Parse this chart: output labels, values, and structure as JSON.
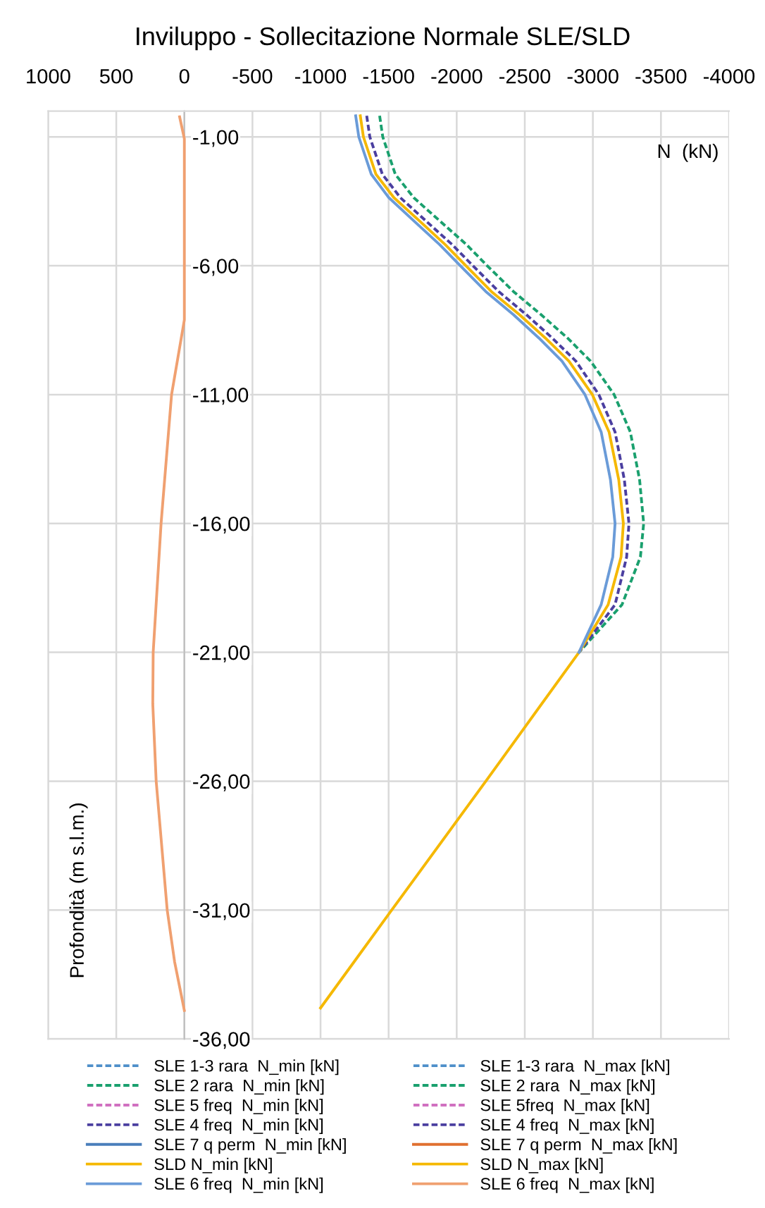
{
  "chart_data": {
    "type": "line",
    "title": "Inviluppo - Sollecitazione Normale SLE/SLD",
    "xlabel": "N  (kN)",
    "ylabel": "Profondità (m s.l.m.)",
    "xlim": [
      1000,
      -4000
    ],
    "xticks": [
      1000,
      500,
      0,
      -500,
      -1000,
      -1500,
      -2000,
      -2500,
      -3000,
      -3500,
      -4000
    ],
    "ylim": [
      -36,
      0
    ],
    "yticks": [
      {
        "value": -1,
        "label": "-1,00"
      },
      {
        "value": -6,
        "label": "-6,00"
      },
      {
        "value": -11,
        "label": "-11,00"
      },
      {
        "value": -16,
        "label": "-16,00"
      },
      {
        "value": -21,
        "label": "-21,00"
      },
      {
        "value": -26,
        "label": "-26,00"
      },
      {
        "value": -31,
        "label": "-31,00"
      },
      {
        "value": -36,
        "label": "-36,00"
      }
    ],
    "grid": true,
    "legend": "bottom",
    "marker": "none",
    "series": [
      {
        "name": "SLE 1-3 rara  N_min [kN]",
        "color": "#4e8fc9",
        "line_style": "dashed",
        "x": [
          null
        ],
        "values": [
          null
        ]
      },
      {
        "name": "SLE 1-3 rara  N_max [kN]",
        "color": "#4e8fc9",
        "line_style": "dashed",
        "x": [
          null
        ],
        "values": [
          null
        ]
      },
      {
        "name": "SLE 2 rara  N_min [kN]",
        "color": "#1aa06e",
        "line_style": "dashed",
        "x": [
          -1434,
          -1457,
          -1549,
          -1685,
          -1878,
          -2072,
          -2224,
          -2417,
          -2620,
          -2813,
          -2983,
          -3156,
          -3275,
          -3343,
          -3373,
          -3349,
          -3214,
          -2898
        ],
        "values": [
          -0.18,
          -1,
          -2.45,
          -3.36,
          -4.27,
          -5.18,
          -6,
          -7,
          -7.9,
          -8.8,
          -9.7,
          -11,
          -12.45,
          -14.3,
          -16,
          -17.3,
          -19.15,
          -21
        ]
      },
      {
        "name": "SLE 2 rara  N_max [kN]",
        "color": "#1aa06e",
        "line_style": "dashed",
        "x": [
          null
        ],
        "values": [
          null
        ]
      },
      {
        "name": "SLE 5 freq  N_min [kN]",
        "color": "#d070c0",
        "line_style": "dashed",
        "x": [
          null
        ],
        "values": [
          null
        ]
      },
      {
        "name": "SLE 5freq  N_max [kN]",
        "color": "#d070c0",
        "line_style": "dashed",
        "x": [
          null
        ],
        "values": [
          null
        ]
      },
      {
        "name": "SLE 4 freq  N_min [kN]",
        "color": "#4b3fa0",
        "line_style": "dashed",
        "x": [
          -1339,
          -1362,
          -1454,
          -1587,
          -1776,
          -1967,
          -2119,
          -2309,
          -2512,
          -2701,
          -2875,
          -3044,
          -3163,
          -3231,
          -3265,
          -3248,
          -3163,
          -2898
        ],
        "values": [
          -0.18,
          -1,
          -2.45,
          -3.36,
          -4.27,
          -5.18,
          -6,
          -7,
          -7.9,
          -8.8,
          -9.7,
          -11,
          -12.45,
          -14.3,
          -16,
          -17.3,
          -19.15,
          -21
        ]
      },
      {
        "name": "SLE 4 freq  N_max [kN]",
        "color": "#4b3fa0",
        "line_style": "dashed",
        "x": [
          null
        ],
        "values": [
          null
        ]
      },
      {
        "name": "SLE 7 q perm  N_min [kN]",
        "color": "#4a7ebb",
        "line_style": "solid",
        "x": [
          null
        ],
        "values": [
          null
        ]
      },
      {
        "name": "SLE 7 q perm  N_max [kN]",
        "color": "#e07030",
        "line_style": "solid",
        "x": [
          null
        ],
        "values": [
          null
        ]
      },
      {
        "name": "SLD N_min [kN]",
        "color": "#f5b800",
        "line_style": "solid",
        "x": [
          -1292,
          -1315,
          -1407,
          -1539,
          -1729,
          -1916,
          -2068,
          -2255,
          -2461,
          -2650,
          -2824,
          -2996,
          -3119,
          -3190,
          -3224,
          -3207,
          -3112,
          -2898,
          -2214,
          -1523,
          -1000
        ],
        "values": [
          -0.18,
          -1,
          -2.45,
          -3.36,
          -4.27,
          -5.18,
          -6,
          -7,
          -7.9,
          -8.8,
          -9.7,
          -11,
          -12.45,
          -14.3,
          -16,
          -17.3,
          -19.15,
          -21,
          -26,
          -31,
          -34.8
        ]
      },
      {
        "name": "SLD N_max [kN]",
        "color": "#f5b800",
        "line_style": "solid",
        "x": [
          null
        ],
        "values": [
          null
        ]
      },
      {
        "name": "SLE 6 freq  N_min [kN]",
        "color": "#6a9bd8",
        "line_style": "solid",
        "x": [
          -1258,
          -1281,
          -1373,
          -1502,
          -1688,
          -1875,
          -2027,
          -2214,
          -2417,
          -2603,
          -2773,
          -2942,
          -3061,
          -3129,
          -3163,
          -3146,
          -3061,
          -2898
        ],
        "values": [
          -0.18,
          -1,
          -2.45,
          -3.36,
          -4.27,
          -5.18,
          -6,
          -7,
          -7.9,
          -8.8,
          -9.7,
          -11,
          -12.45,
          -14.3,
          -16,
          -17.3,
          -19.15,
          -21
        ]
      },
      {
        "name": "SLE 6 freq  N_max [kN]",
        "color": "#f0a070",
        "line_style": "solid",
        "x": [
          35,
          0,
          0,
          0,
          0,
          94,
          171,
          229,
          232,
          207,
          126,
          72,
          0
        ],
        "values": [
          -0.22,
          -1.07,
          -6,
          -7.65,
          -8.1,
          -11,
          -16,
          -21,
          -23,
          -26,
          -31,
          -33,
          -34.9
        ]
      }
    ]
  }
}
